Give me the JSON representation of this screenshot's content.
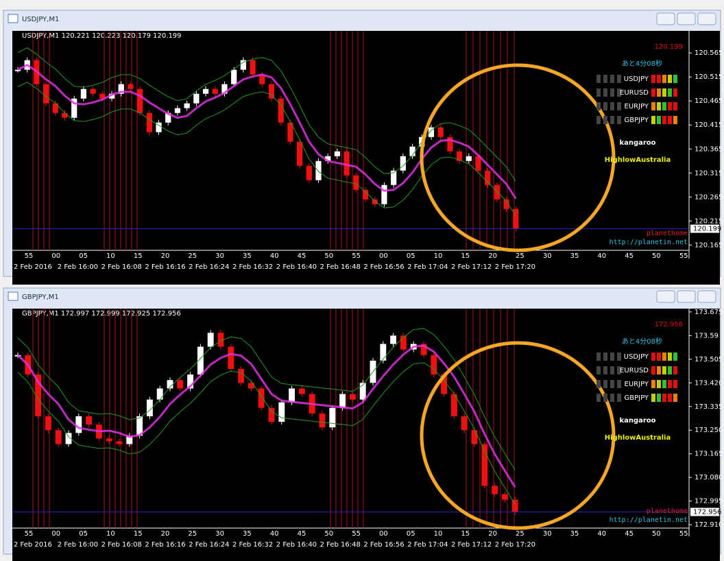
{
  "windows": [
    {
      "title": "USDJPY,M1",
      "header": "USDJPY,M1  120.221 120.223 120.179 120.199",
      "price": "120.199",
      "countdown": "あと4分08秒",
      "pairs": [
        "USDJPY",
        "EURUSD",
        "EURJPY",
        "GBPJPY"
      ],
      "brand": "kangaroo",
      "sub": "HighlowAustralia",
      "watermark": "planethome",
      "url": "http://planetin.net",
      "ylim": [
        120.154,
        120.611
      ],
      "yticks": [
        120.565,
        120.515,
        120.465,
        120.415,
        120.365,
        120.315,
        120.265,
        120.215,
        120.165
      ],
      "current": 120.199,
      "minutes": [
        "55",
        "00",
        "05",
        "10",
        "15",
        "20",
        "25",
        "30",
        "35",
        "40",
        "45",
        "50",
        "55",
        "00",
        "05",
        "10",
        "15",
        "20",
        "25",
        "30",
        "35",
        "40",
        "45",
        "50",
        "55"
      ],
      "times": [
        "2 Feb 2016",
        "2 Feb 16:00",
        "2 Feb 16:08",
        "2 Feb 16:16",
        "2 Feb 16:24",
        "2 Feb 16:32",
        "2 Feb 16:40",
        "2 Feb 16:48",
        "2 Feb 16:56",
        "2 Feb 17:04",
        "2 Feb 17:12",
        "2 Feb 17:20"
      ],
      "closes": [
        120.53,
        120.55,
        120.5,
        120.46,
        120.44,
        120.43,
        120.47,
        120.49,
        120.48,
        120.47,
        120.48,
        120.5,
        120.49,
        120.44,
        120.4,
        120.42,
        120.44,
        120.45,
        120.46,
        120.48,
        120.49,
        120.48,
        120.5,
        120.53,
        120.55,
        120.52,
        120.5,
        120.47,
        120.42,
        120.38,
        120.33,
        120.3,
        120.34,
        120.35,
        120.36,
        120.31,
        120.28,
        120.26,
        120.25,
        120.29,
        120.32,
        120.35,
        120.37,
        120.39,
        120.41,
        120.39,
        120.36,
        120.34,
        120.35,
        120.32,
        120.29,
        120.26,
        120.24,
        120.199
      ]
    },
    {
      "title": "GBPJPY,M1",
      "header": "GBPJPY,M1  172.997 172.999 172.925 172.956",
      "price": "172.956",
      "countdown": "あと4分08秒",
      "pairs": [
        "USDJPY",
        "EURUSD",
        "EURJPY",
        "GBPJPY"
      ],
      "brand": "kangaroo",
      "sub": "HighlowAustralia",
      "watermark": "planethome",
      "url": "http://planetin.net",
      "ylim": [
        172.898,
        173.687
      ],
      "yticks": [
        173.675,
        173.59,
        173.505,
        {
          "value": 173.42,
          "label": "173.420"
        },
        173.335,
        {
          "value": 173.25,
          "label": "173.250"
        },
        173.165,
        {
          "value": 173.08,
          "label": "173.080"
        },
        172.995,
        {
          "value": 172.91,
          "label": "172.910"
        }
      ],
      "current": 172.956,
      "minutes": [
        "55",
        "00",
        "05",
        "10",
        "15",
        "20",
        "25",
        "30",
        "35",
        "40",
        "45",
        "50",
        "55",
        "00",
        "05",
        "10",
        "15",
        "20",
        "25",
        "30",
        "35",
        "40",
        "45",
        "50",
        "55"
      ],
      "times": [
        "2 Feb 2016",
        "2 Feb 16:00",
        "2 Feb 16:08",
        "2 Feb 16:16",
        "2 Feb 16:24",
        "2 Feb 16:32",
        "2 Feb 16:40",
        "2 Feb 16:48",
        "2 Feb 16:56",
        "2 Feb 17:04",
        "2 Feb 17:12",
        "2 Feb 17:20"
      ],
      "closes": [
        173.52,
        173.45,
        173.3,
        173.25,
        173.2,
        173.24,
        173.3,
        173.27,
        173.22,
        173.21,
        173.2,
        173.23,
        173.3,
        173.36,
        173.4,
        173.43,
        173.4,
        173.45,
        173.55,
        173.6,
        173.55,
        173.47,
        173.42,
        173.4,
        173.33,
        173.28,
        173.35,
        173.4,
        173.38,
        173.31,
        173.26,
        173.33,
        173.38,
        173.36,
        173.42,
        173.5,
        173.56,
        173.59,
        173.54,
        173.56,
        173.52,
        173.45,
        173.38,
        173.3,
        173.25,
        173.2,
        173.05,
        173.02,
        173.0,
        172.956
      ]
    }
  ]
}
